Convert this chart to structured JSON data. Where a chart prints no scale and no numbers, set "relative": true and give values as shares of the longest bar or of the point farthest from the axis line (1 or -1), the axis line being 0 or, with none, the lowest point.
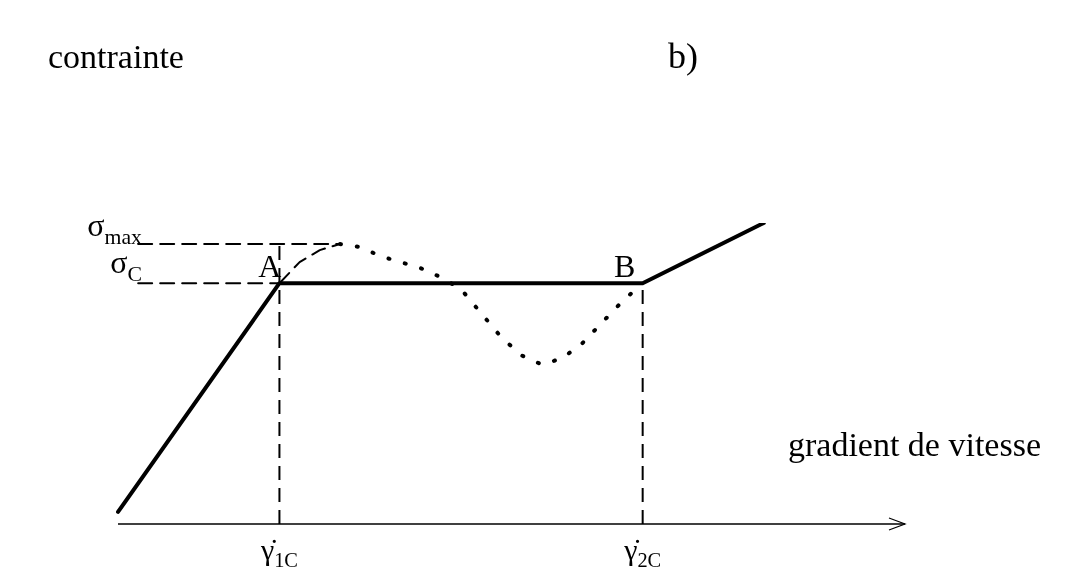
{
  "chart_data": {
    "type": "line",
    "relative": true,
    "ylabel": "contrainte",
    "xlabel": "gradient de vitesse",
    "annotations": [
      "b)",
      "σ$_{max}$",
      "σ$_{C}$",
      {
        "text": "A",
        "x": "γ̇$_{1C}$",
        "y": 0.8
      },
      {
        "text": "B",
        "x": "γ̇$_{2C}$",
        "y": 0.8
      }
    ],
    "categories": [
      null,
      null,
      null,
      null,
      null,
      null,
      null,
      null,
      "γ̇$_{1C}$",
      null,
      null,
      null,
      null,
      null,
      null,
      null,
      null,
      null,
      null,
      null,
      null,
      null,
      null,
      null,
      null,
      null,
      "γ̇$_{2C}$",
      null,
      null,
      null,
      null,
      null,
      null,
      null,
      null,
      null,
      null,
      null,
      null,
      null
    ],
    "marker": "none",
    "ref_lines": [
      {
        "axis": "x",
        "value": "γ̇$_{1C}$",
        "line_style": "dashed",
        "color": "#000000"
      },
      {
        "axis": "x",
        "value": "γ̇$_{2C}$",
        "line_style": "dashed",
        "color": "#000000"
      }
    ],
    "series": [
      {
        "color": "#000000",
        "line_style": "solid",
        "values": [
          0.04,
          null,
          null,
          null,
          null,
          null,
          null,
          null,
          0.8,
          null,
          null,
          null,
          null,
          null,
          null,
          null,
          null,
          null,
          null,
          null,
          null,
          null,
          null,
          null,
          null,
          null,
          0.8,
          null,
          null,
          null,
          null,
          null,
          1.0,
          null,
          null,
          null,
          null,
          null,
          null,
          null
        ]
      },
      {
        "color": "#000000",
        "line_style": "dashed",
        "values": [
          null,
          null,
          null,
          null,
          null,
          null,
          null,
          null,
          0.8,
          0.87,
          0.91,
          0.93,
          null,
          null,
          null,
          null,
          null,
          null,
          null,
          null,
          null,
          null,
          null,
          null,
          null,
          null,
          null,
          null,
          null,
          null,
          null,
          null,
          null,
          null,
          null,
          null,
          null,
          null,
          null,
          null
        ]
      },
      {
        "color": "#000000",
        "line_style": "dotted",
        "values": [
          null,
          null,
          null,
          null,
          null,
          null,
          null,
          null,
          null,
          null,
          null,
          0.93,
          0.92,
          0.89,
          0.87,
          0.85,
          0.82,
          0.78,
          0.7,
          0.62,
          0.56,
          0.53,
          0.55,
          0.6,
          0.67,
          0.74,
          0.8,
          null,
          null,
          null,
          null,
          null,
          null,
          null,
          null,
          null,
          null,
          null,
          null,
          null
        ]
      },
      {
        "color": "#000000",
        "line_style": "dashed",
        "values": [
          null,
          0.93,
          0.93,
          0.93,
          0.93,
          0.93,
          0.93,
          0.93,
          0.93,
          0.93,
          0.93,
          0.93,
          null,
          null,
          null,
          null,
          null,
          null,
          null,
          null,
          null,
          null,
          null,
          null,
          null,
          null,
          null,
          null,
          null,
          null,
          null,
          null,
          null,
          null,
          null,
          null,
          null,
          null,
          null,
          null
        ]
      },
      {
        "color": "#000000",
        "line_style": "dashed",
        "values": [
          null,
          0.8,
          0.8,
          0.8,
          0.8,
          0.8,
          0.8,
          0.8,
          0.8,
          null,
          null,
          null,
          null,
          null,
          null,
          null,
          null,
          null,
          null,
          null,
          null,
          null,
          null,
          null,
          null,
          null,
          null,
          null,
          null,
          null,
          null,
          null,
          null,
          null,
          null,
          null,
          null,
          null,
          null,
          null
        ]
      }
    ]
  }
}
